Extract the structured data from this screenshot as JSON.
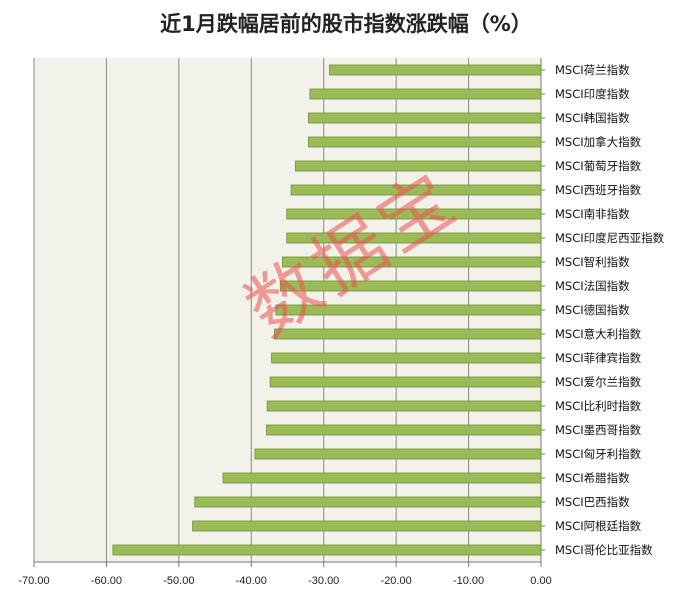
{
  "chart_data": {
    "type": "bar",
    "orientation": "horizontal",
    "title": "近1月跌幅居前的股市指数涨跌幅（%）",
    "categories": [
      "MSCI荷兰指数",
      "MSCI印度指数",
      "MSCI韩国指数",
      "MSCI加拿大指数",
      "MSCI葡萄牙指数",
      "MSCI西班牙指数",
      "MSCI南非指数",
      "MSCI印度尼西亚指数",
      "MSCI智利指数",
      "MSCI法国指数",
      "MSCI德国指数",
      "MSCI意大利指数",
      "MSCI菲律宾指数",
      "MSCI爱尔兰指数",
      "MSCI比利时指数",
      "MSCI墨西哥指数",
      "MSCI匈牙利指数",
      "MSCI希腊指数",
      "MSCI巴西指数",
      "MSCI阿根廷指数",
      "MSCI哥伦比亚指数"
    ],
    "values": [
      -29.2,
      -31.9,
      -32.1,
      -32.1,
      -33.9,
      -34.5,
      -35.1,
      -35.1,
      -35.7,
      -36.0,
      -36.6,
      -36.8,
      -37.2,
      -37.4,
      -37.8,
      -37.9,
      -39.5,
      -43.9,
      -47.8,
      -48.1,
      -59.1
    ],
    "xlim": [
      -70,
      0
    ],
    "xticks": [
      "-70.00",
      "-60.00",
      "-50.00",
      "-40.00",
      "-30.00",
      "-20.00",
      "-10.00",
      "0.00"
    ],
    "xtick_values": [
      -70,
      -60,
      -50,
      -40,
      -30,
      -20,
      -10,
      0
    ],
    "grid": "vertical",
    "legend": "none",
    "bar_color": "#9bbb59",
    "bar_border_color": "#6f8f34",
    "plot_background": "#f2f2ea",
    "watermark": "数据宝"
  }
}
